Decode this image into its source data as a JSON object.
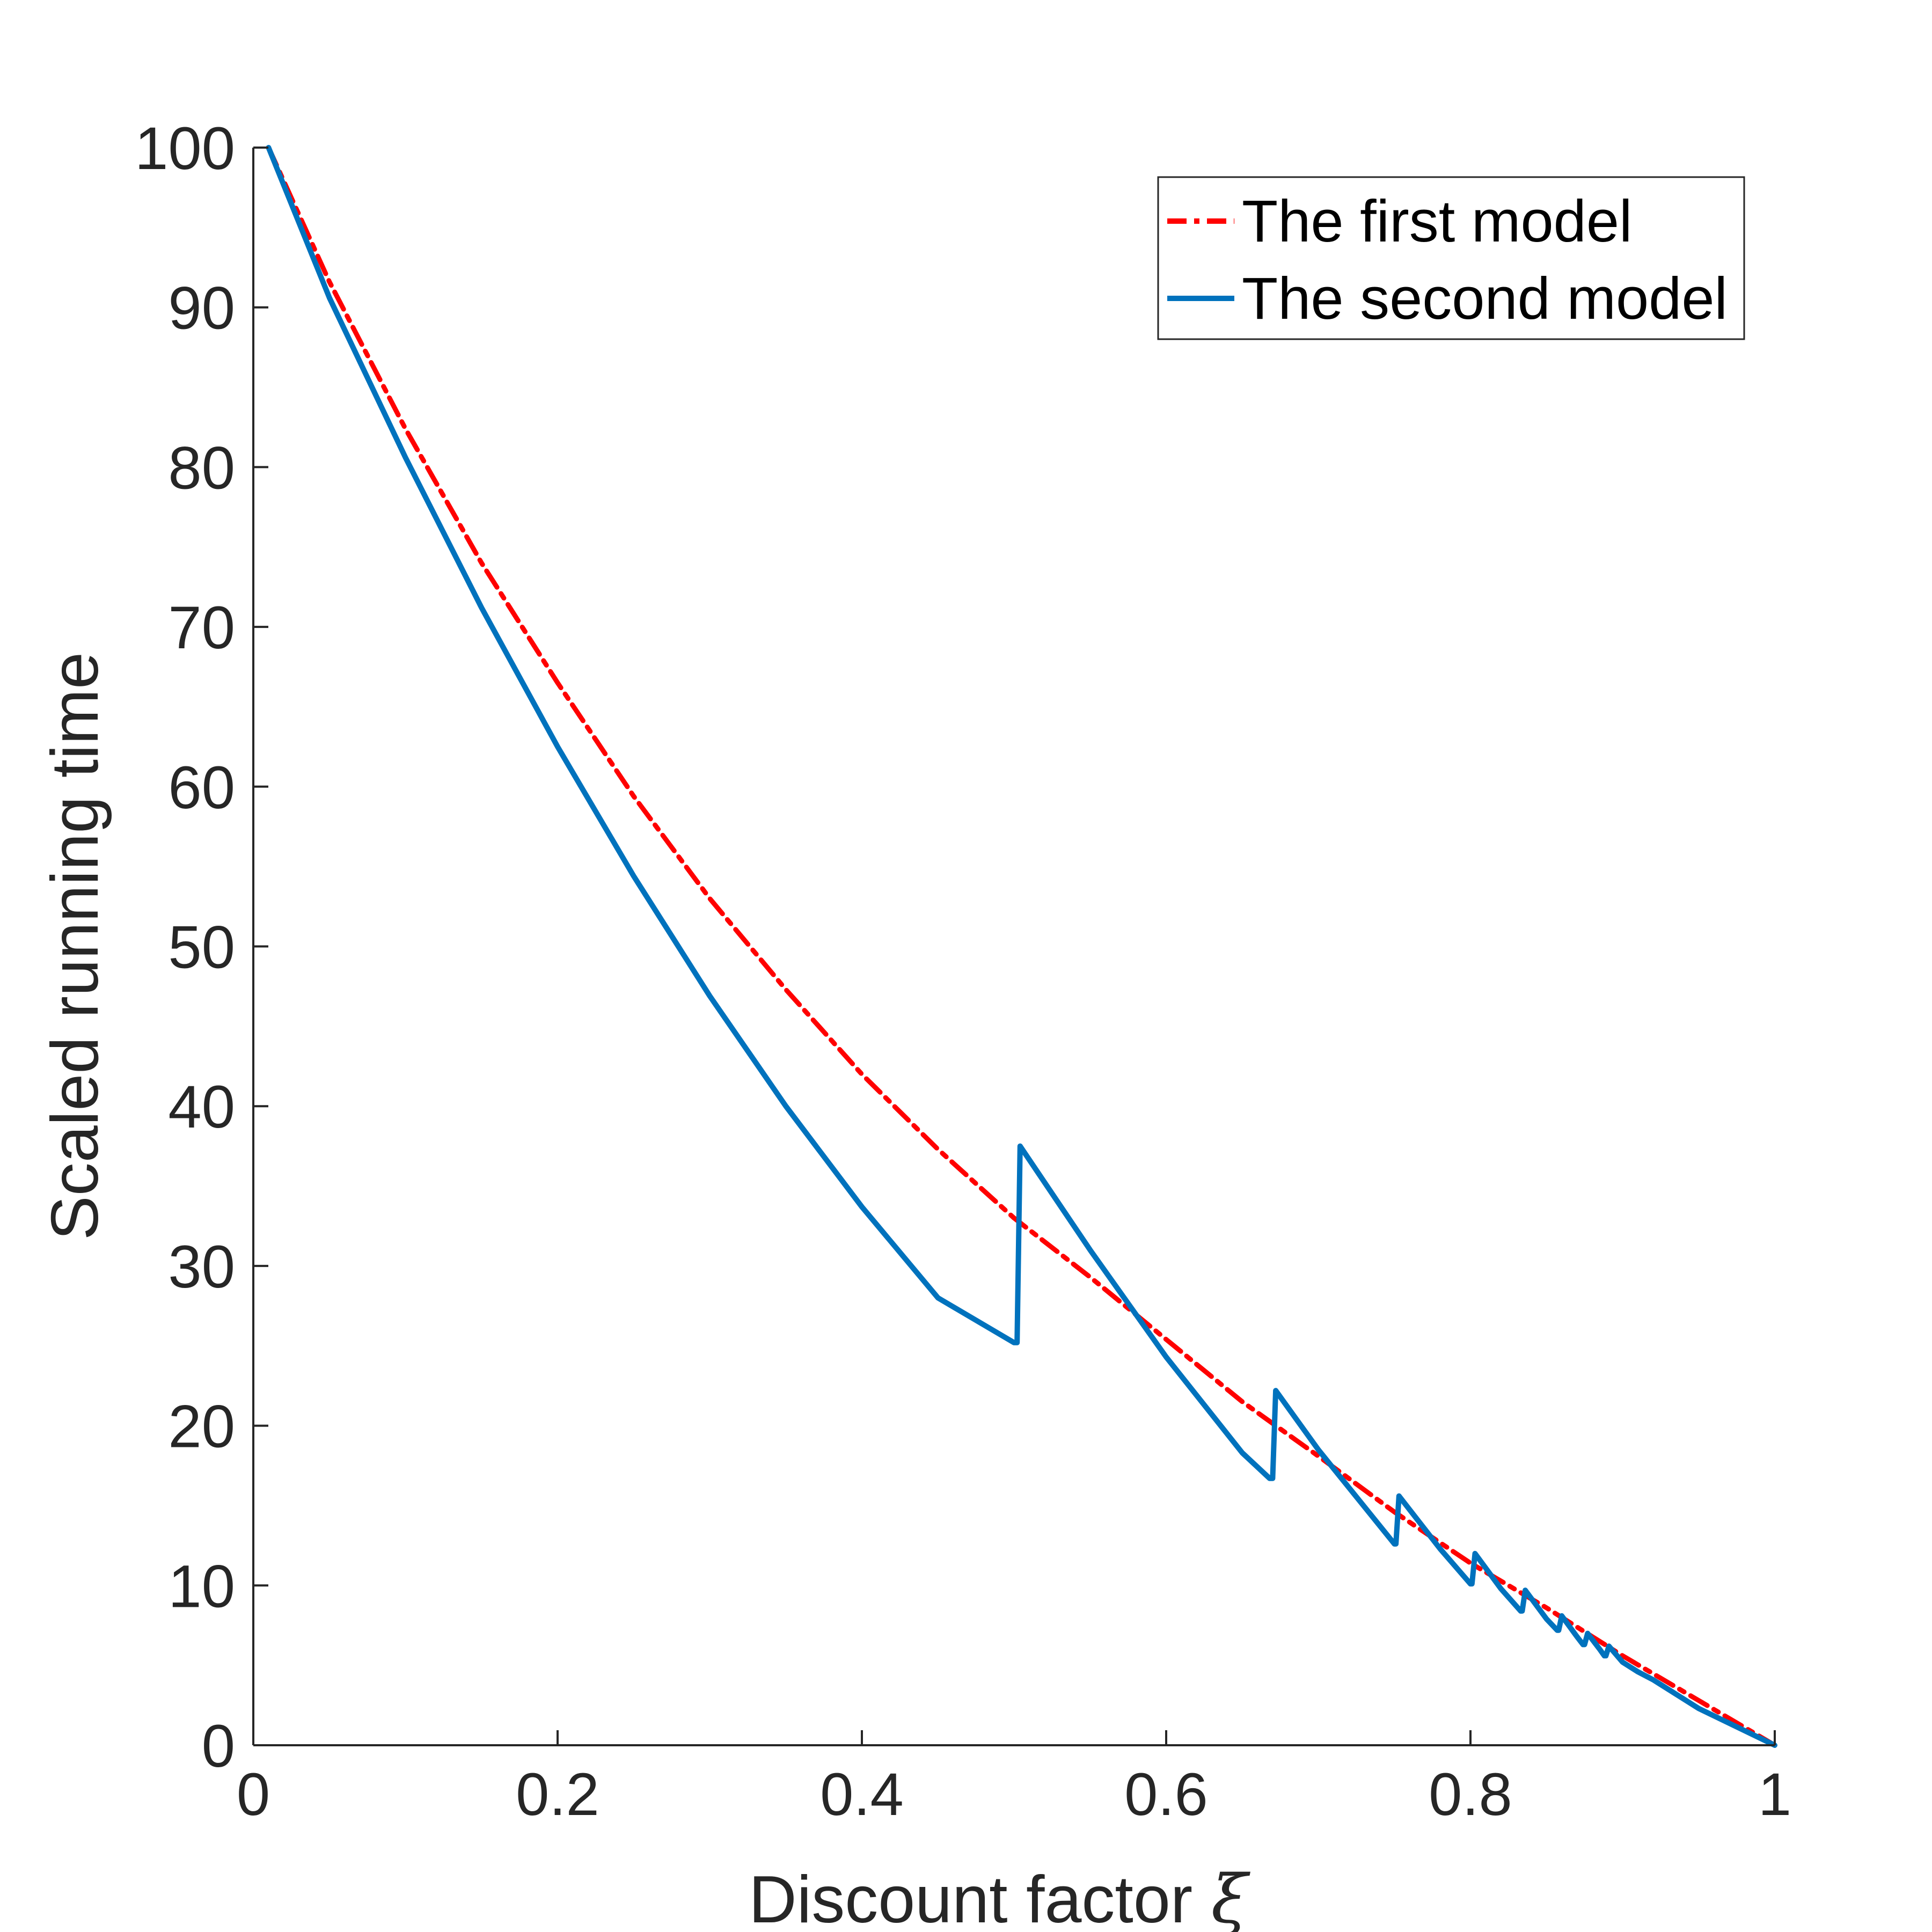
{
  "chart_data": {
    "type": "line",
    "xlabel": "Discount factor",
    "xlabel_symbol": "ξ",
    "ylabel": "Scaled running time",
    "xlim": [
      0,
      1
    ],
    "ylim": [
      0,
      100
    ],
    "xticks": [
      0,
      0.2,
      0.4,
      0.6,
      0.8,
      1
    ],
    "xtick_labels": [
      "0",
      "0.2",
      "0.4",
      "0.6",
      "0.8",
      "1"
    ],
    "yticks": [
      0,
      10,
      20,
      30,
      40,
      50,
      60,
      70,
      80,
      90,
      100
    ],
    "ytick_labels": [
      "0",
      "10",
      "20",
      "30",
      "40",
      "50",
      "60",
      "70",
      "80",
      "90",
      "100"
    ],
    "grid": false,
    "legend_position": "top-right",
    "series": [
      {
        "name": "The first model",
        "color": "#ff0000",
        "style": "dash-dot",
        "x": [
          0.01,
          0.05,
          0.1,
          0.15,
          0.2,
          0.25,
          0.3,
          0.35,
          0.4,
          0.45,
          0.5,
          0.55,
          0.6,
          0.65,
          0.7,
          0.75,
          0.8,
          0.85,
          0.9,
          0.95,
          1.0
        ],
        "y": [
          100,
          91.6,
          82.4,
          74.0,
          66.5,
          59.4,
          53.0,
          47.3,
          42.0,
          37.3,
          33.0,
          29.3,
          25.4,
          21.5,
          18.1,
          14.6,
          11.4,
          8.6,
          5.6,
          2.8,
          0
        ]
      },
      {
        "name": "The second model",
        "color": "#0072bd",
        "style": "solid",
        "x": [
          0.01,
          0.05,
          0.1,
          0.15,
          0.2,
          0.25,
          0.3,
          0.35,
          0.4,
          0.45,
          0.5,
          0.502,
          0.504,
          0.55,
          0.6,
          0.65,
          0.668,
          0.67,
          0.672,
          0.7,
          0.75,
          0.751,
          0.753,
          0.78,
          0.8,
          0.801,
          0.803,
          0.82,
          0.833,
          0.834,
          0.836,
          0.85,
          0.857,
          0.858,
          0.86,
          0.87,
          0.874,
          0.875,
          0.877,
          0.885,
          0.888,
          0.889,
          0.891,
          0.9,
          0.91,
          0.92,
          0.95,
          1.0
        ],
        "y": [
          100,
          90.6,
          80.6,
          71.2,
          62.5,
          54.4,
          46.9,
          40.0,
          33.7,
          28.0,
          25.2,
          25.2,
          37.5,
          31.0,
          24.3,
          18.3,
          16.7,
          16.7,
          22.2,
          18.5,
          12.6,
          12.6,
          15.6,
          12.3,
          10.1,
          10.1,
          12.0,
          9.8,
          8.4,
          8.4,
          9.7,
          7.9,
          7.2,
          7.2,
          8.1,
          6.8,
          6.3,
          6.3,
          7.0,
          6.0,
          5.6,
          5.6,
          6.2,
          5.2,
          4.6,
          4.1,
          2.3,
          0
        ]
      }
    ]
  }
}
